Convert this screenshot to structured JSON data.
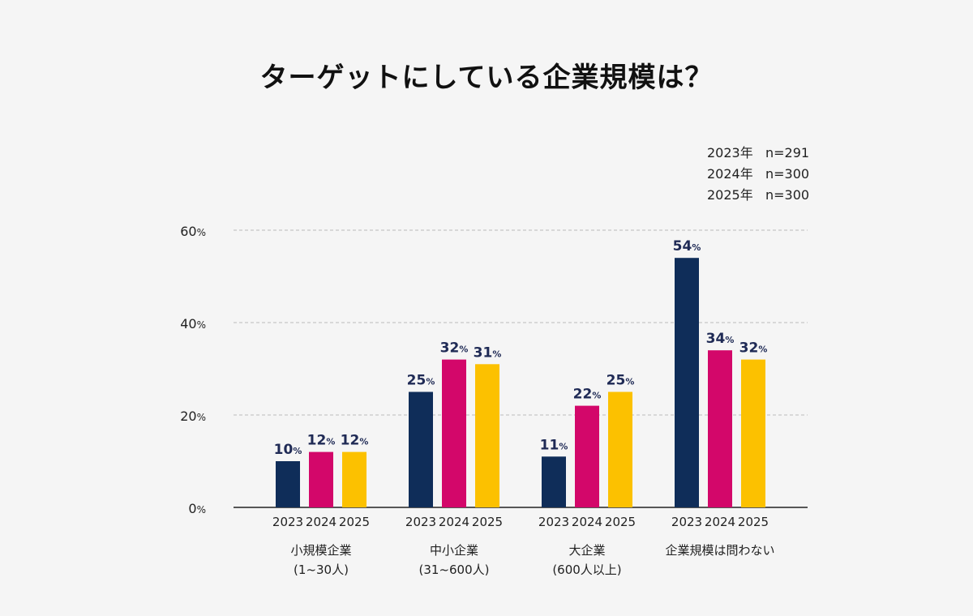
{
  "title": "ターゲットにしている企業規模は？",
  "sample_sizes": [
    {
      "year": "2023年",
      "n": "n=291"
    },
    {
      "year": "2024年",
      "n": "n=300"
    },
    {
      "year": "2025年",
      "n": "n=300"
    }
  ],
  "colors": {
    "2023": "#0f2d59",
    "2024": "#d3076a",
    "2025": "#fcc100",
    "value_label": "#1f2a55",
    "grid": "#bbbbbb",
    "axis": "#222222"
  },
  "chart_data": {
    "type": "bar",
    "title": "ターゲットにしている企業規模は？",
    "categories": [
      {
        "label_line1": "小規模企業",
        "label_line2": "(1~30人)"
      },
      {
        "label_line1": "中小企業",
        "label_line2": "(31~600人)"
      },
      {
        "label_line1": "大企業",
        "label_line2": "(600人以上)"
      },
      {
        "label_line1": "企業規模は問わない",
        "label_line2": ""
      }
    ],
    "series": [
      {
        "name": "2023",
        "values": [
          10,
          25,
          11,
          54
        ]
      },
      {
        "name": "2024",
        "values": [
          12,
          32,
          22,
          34
        ]
      },
      {
        "name": "2025",
        "values": [
          12,
          31,
          25,
          32
        ]
      }
    ],
    "value_unit": "%",
    "y_ticks": [
      0,
      20,
      40,
      60
    ],
    "y_tick_unit": "%",
    "ylim": [
      0,
      60
    ],
    "grid": "dashed horizontal",
    "xlabel": "",
    "ylabel": ""
  }
}
